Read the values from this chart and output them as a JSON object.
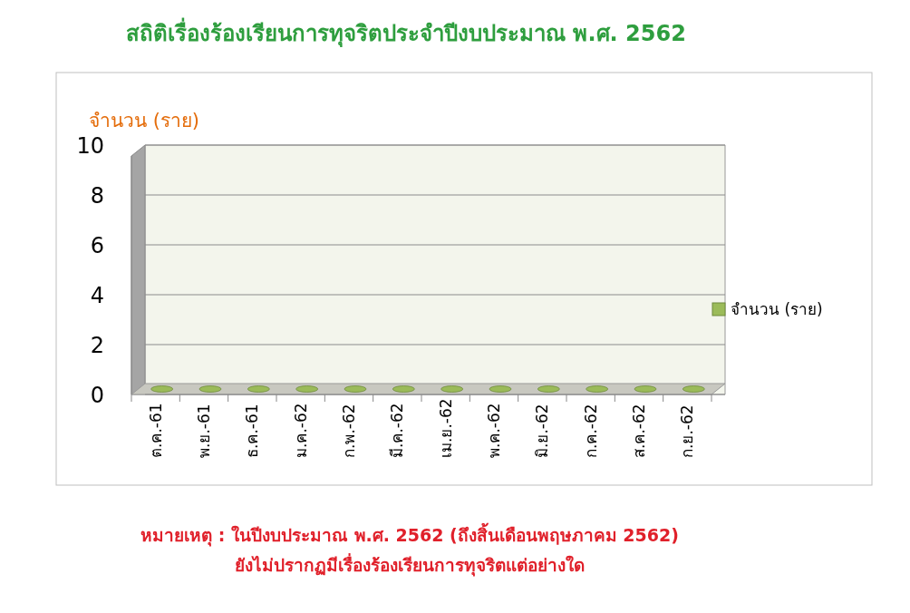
{
  "chart_data": {
    "type": "bar",
    "title": "สถิติเรื่องร้องเรียนการทุจริตประจำปีงบประมาณ  พ.ศ. 2562",
    "ylabel": "จำนวน (ราย)",
    "categories": [
      "ต.ค.-61",
      "พ.ย.-61",
      "ธ.ค.-61",
      "ม.ค.-62",
      "ก.พ.-62",
      "มี.ค.-62",
      "เม.ย.-62",
      "พ.ค.-62",
      "มิ.ย.-62",
      "ก.ค.-62",
      "ส.ค.-62",
      "ก.ย.-62"
    ],
    "series": [
      {
        "name": "จำนวน (ราย)",
        "color": "#9bbb59",
        "values": [
          0,
          0,
          0,
          0,
          0,
          0,
          0,
          0,
          0,
          0,
          0,
          0
        ]
      }
    ],
    "ylim": [
      0,
      10
    ],
    "yticks": [
      0,
      2,
      4,
      6,
      8,
      10
    ],
    "grid": "y",
    "legend": "right",
    "annotations": [
      "หมายเหตุ : ในปีงบประมาณ พ.ศ. 2562 (ถึงสิ้นเดือนพฤษภาคม 2562)",
      "ยังไม่ปรากฏมีเรื่องร้องเรียนการทุจริตแต่อย่างใด"
    ]
  }
}
